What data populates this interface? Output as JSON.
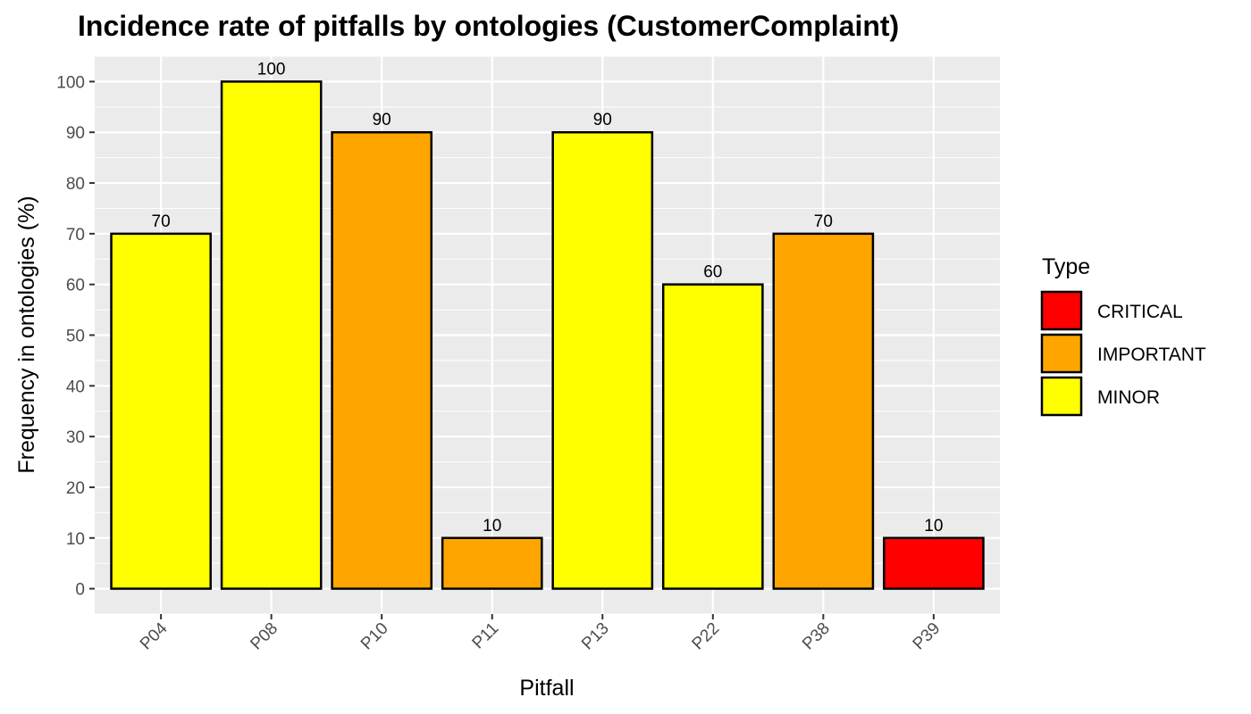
{
  "chart_data": {
    "type": "bar",
    "title": "Incidence rate of pitfalls by ontologies (CustomerComplaint)",
    "xlabel": "Pitfall",
    "ylabel": "Frequency in ontologies (%)",
    "categories": [
      "P04",
      "P08",
      "P10",
      "P11",
      "P13",
      "P22",
      "P38",
      "P39"
    ],
    "values": [
      70,
      100,
      90,
      10,
      90,
      60,
      70,
      10
    ],
    "value_labels": [
      "70",
      "100",
      "90",
      "10",
      "90",
      "60",
      "70",
      "10"
    ],
    "types": [
      "MINOR",
      "MINOR",
      "IMPORTANT",
      "IMPORTANT",
      "MINOR",
      "MINOR",
      "IMPORTANT",
      "CRITICAL"
    ],
    "y_ticks": [
      0,
      10,
      20,
      30,
      40,
      50,
      60,
      70,
      80,
      90,
      100
    ],
    "ylim": [
      -5,
      105
    ],
    "grid": true,
    "legend": {
      "title": "Type",
      "position": "right",
      "entries": [
        {
          "label": "CRITICAL",
          "color": "#ff0000"
        },
        {
          "label": "IMPORTANT",
          "color": "#ffa500"
        },
        {
          "label": "MINOR",
          "color": "#ffff00"
        }
      ]
    },
    "colors": {
      "CRITICAL": "#ff0000",
      "IMPORTANT": "#ffa500",
      "MINOR": "#ffff00",
      "panel_background": "#ebebeb",
      "grid": "#ffffff",
      "bar_outline": "#000000"
    }
  }
}
